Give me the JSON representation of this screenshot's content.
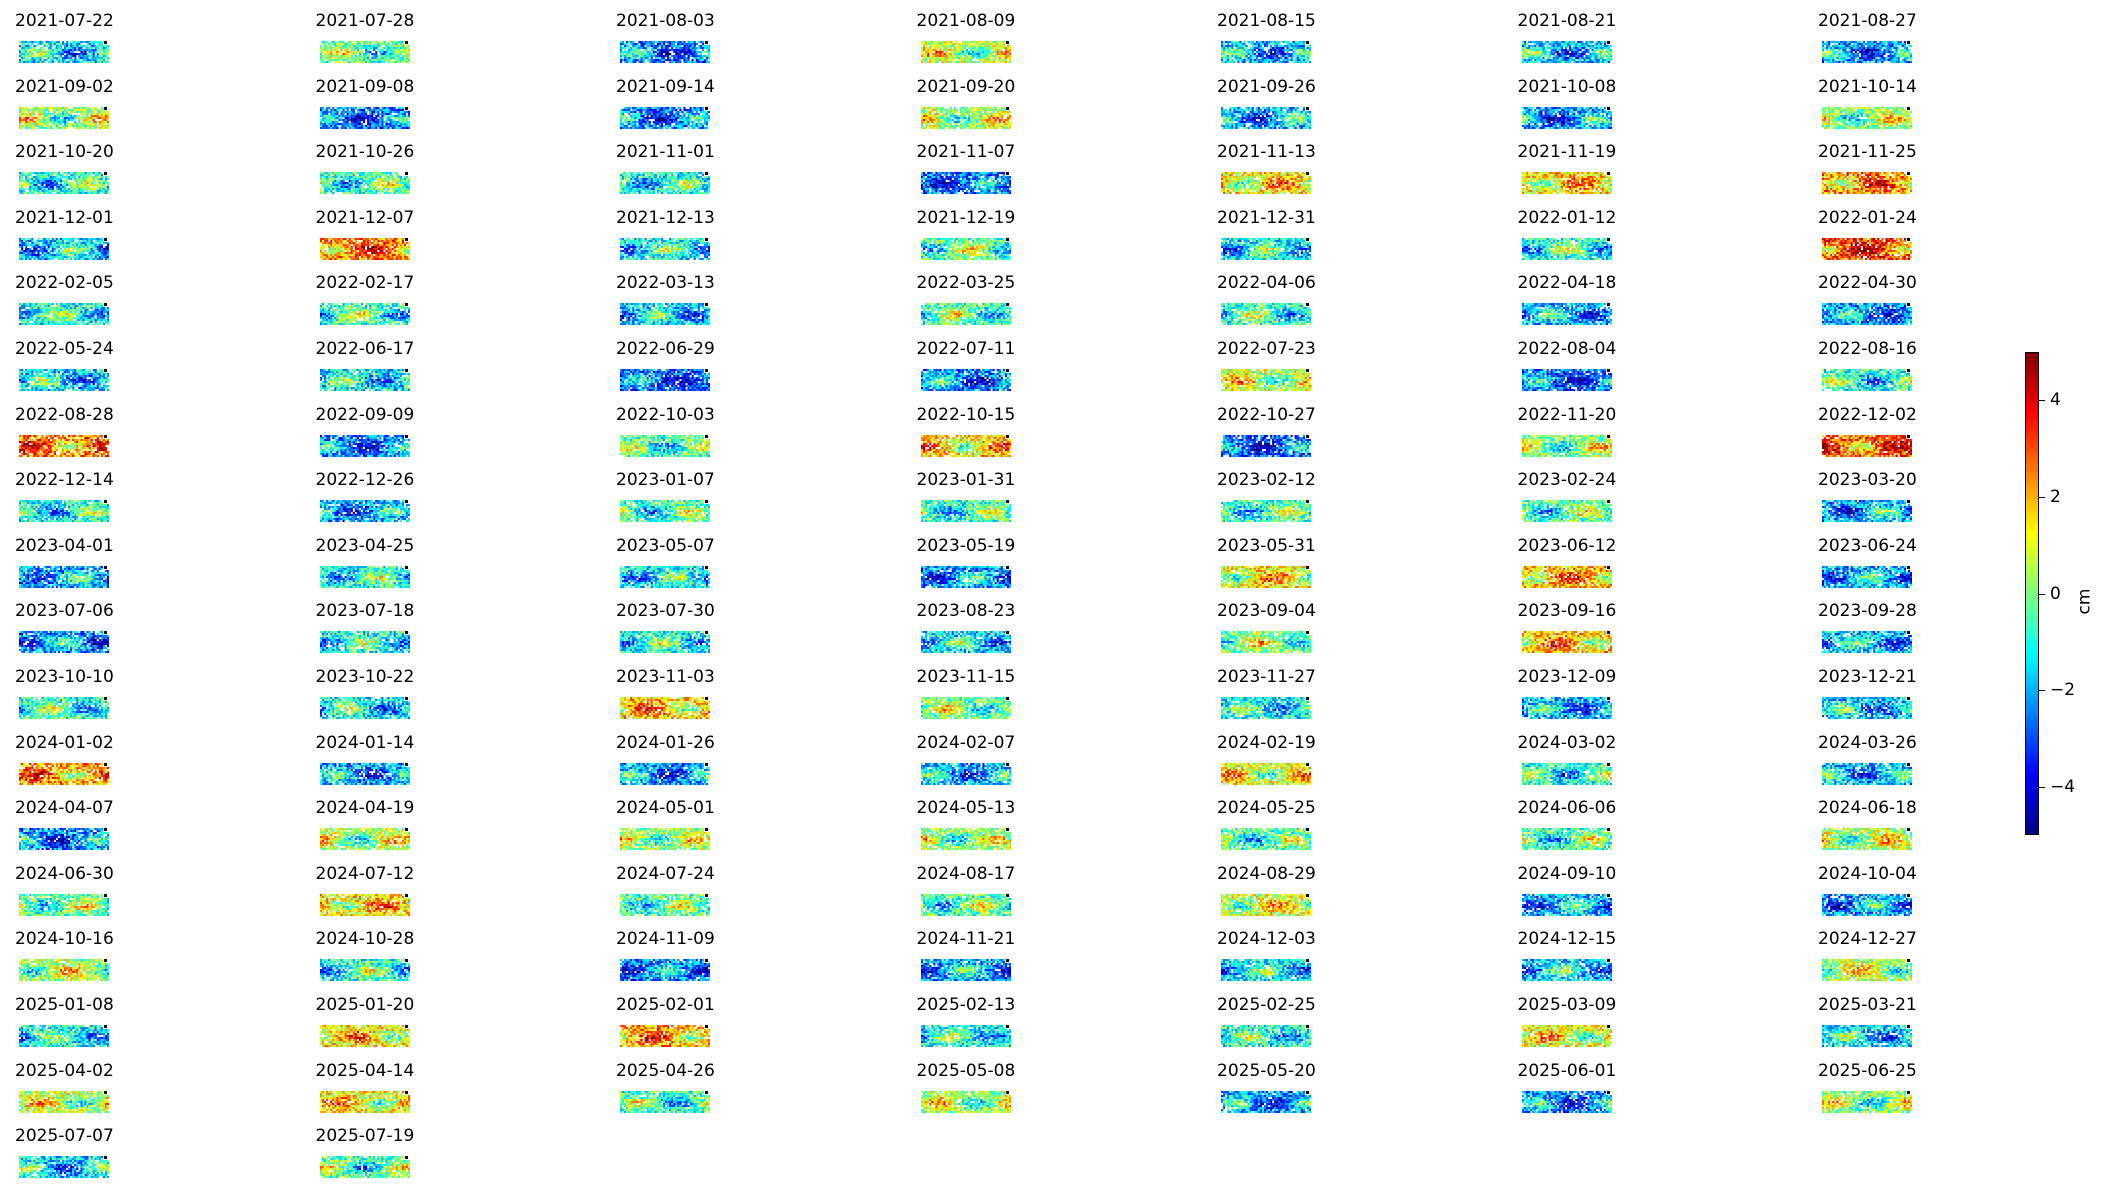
{
  "chart_data": {
    "type": "heatmap",
    "grid": "off",
    "colormap": "jet",
    "panels": [
      {
        "date": "2021-07-22",
        "mean": -1.5
      },
      {
        "date": "2021-07-28",
        "mean": -0.3
      },
      {
        "date": "2021-08-03",
        "mean": -2.5
      },
      {
        "date": "2021-08-09",
        "mean": 0.6
      },
      {
        "date": "2021-08-15",
        "mean": -2.0
      },
      {
        "date": "2021-08-21",
        "mean": -1.8
      },
      {
        "date": "2021-08-27",
        "mean": -2.3
      },
      {
        "date": "2021-09-02",
        "mean": 0.3
      },
      {
        "date": "2021-09-08",
        "mean": -2.6
      },
      {
        "date": "2021-09-14",
        "mean": -2.4
      },
      {
        "date": "2021-09-20",
        "mean": 0.5
      },
      {
        "date": "2021-09-26",
        "mean": -1.9
      },
      {
        "date": "2021-10-08",
        "mean": -2.2
      },
      {
        "date": "2021-10-14",
        "mean": 0.2
      },
      {
        "date": "2021-10-20",
        "mean": -1.0
      },
      {
        "date": "2021-10-26",
        "mean": -0.6
      },
      {
        "date": "2021-11-01",
        "mean": -1.1
      },
      {
        "date": "2021-11-07",
        "mean": -2.6
      },
      {
        "date": "2021-11-13",
        "mean": 1.4
      },
      {
        "date": "2021-11-19",
        "mean": 1.6
      },
      {
        "date": "2021-11-25",
        "mean": 2.4
      },
      {
        "date": "2021-12-01",
        "mean": -1.6
      },
      {
        "date": "2021-12-07",
        "mean": 2.5
      },
      {
        "date": "2021-12-13",
        "mean": -1.2
      },
      {
        "date": "2021-12-19",
        "mean": -0.4
      },
      {
        "date": "2021-12-31",
        "mean": -1.3
      },
      {
        "date": "2022-01-12",
        "mean": -0.9
      },
      {
        "date": "2022-01-24",
        "mean": 3.2
      },
      {
        "date": "2022-02-05",
        "mean": -1.0
      },
      {
        "date": "2022-02-17",
        "mean": -0.8
      },
      {
        "date": "2022-03-13",
        "mean": -1.7
      },
      {
        "date": "2022-03-25",
        "mean": -0.5
      },
      {
        "date": "2022-04-06",
        "mean": -0.7
      },
      {
        "date": "2022-04-18",
        "mean": -2.0
      },
      {
        "date": "2022-04-30",
        "mean": -2.3
      },
      {
        "date": "2022-05-24",
        "mean": -1.6
      },
      {
        "date": "2022-06-17",
        "mean": -1.4
      },
      {
        "date": "2022-06-29",
        "mean": -2.8
      },
      {
        "date": "2022-07-11",
        "mean": -2.4
      },
      {
        "date": "2022-07-23",
        "mean": 0.8
      },
      {
        "date": "2022-08-04",
        "mean": -2.7
      },
      {
        "date": "2022-08-16",
        "mean": -0.9
      },
      {
        "date": "2022-08-28",
        "mean": 2.6
      },
      {
        "date": "2022-09-09",
        "mean": -2.5
      },
      {
        "date": "2022-10-03",
        "mean": -0.5
      },
      {
        "date": "2022-10-15",
        "mean": 1.5
      },
      {
        "date": "2022-10-27",
        "mean": -2.9
      },
      {
        "date": "2022-11-20",
        "mean": 0.1
      },
      {
        "date": "2022-12-02",
        "mean": 2.9
      },
      {
        "date": "2022-12-14",
        "mean": -1.1
      },
      {
        "date": "2022-12-26",
        "mean": -2.2
      },
      {
        "date": "2023-01-07",
        "mean": -0.6
      },
      {
        "date": "2023-01-31",
        "mean": -0.7
      },
      {
        "date": "2023-02-12",
        "mean": -0.8
      },
      {
        "date": "2023-02-24",
        "mean": -0.4
      },
      {
        "date": "2023-03-20",
        "mean": -2.0
      },
      {
        "date": "2023-04-01",
        "mean": -2.1
      },
      {
        "date": "2023-04-25",
        "mean": -1.0
      },
      {
        "date": "2023-05-07",
        "mean": -1.4
      },
      {
        "date": "2023-05-19",
        "mean": -2.2
      },
      {
        "date": "2023-05-31",
        "mean": 1.2
      },
      {
        "date": "2023-06-12",
        "mean": 2.0
      },
      {
        "date": "2023-06-24",
        "mean": -2.0
      },
      {
        "date": "2023-07-06",
        "mean": -2.3
      },
      {
        "date": "2023-07-18",
        "mean": -1.2
      },
      {
        "date": "2023-07-30",
        "mean": -1.0
      },
      {
        "date": "2023-08-23",
        "mean": -1.6
      },
      {
        "date": "2023-09-04",
        "mean": 0.0
      },
      {
        "date": "2023-09-16",
        "mean": 1.8
      },
      {
        "date": "2023-09-28",
        "mean": -1.9
      },
      {
        "date": "2023-10-10",
        "mean": -0.8
      },
      {
        "date": "2023-10-22",
        "mean": -1.3
      },
      {
        "date": "2023-11-03",
        "mean": 1.7
      },
      {
        "date": "2023-11-15",
        "mean": -0.1
      },
      {
        "date": "2023-11-27",
        "mean": -1.2
      },
      {
        "date": "2023-12-09",
        "mean": -2.0
      },
      {
        "date": "2023-12-21",
        "mean": -1.8
      },
      {
        "date": "2024-01-02",
        "mean": 2.2
      },
      {
        "date": "2024-01-14",
        "mean": -2.1
      },
      {
        "date": "2024-01-26",
        "mean": -2.2
      },
      {
        "date": "2024-02-07",
        "mean": -1.9
      },
      {
        "date": "2024-02-19",
        "mean": 1.0
      },
      {
        "date": "2024-03-02",
        "mean": -0.9
      },
      {
        "date": "2024-03-26",
        "mean": -1.8
      },
      {
        "date": "2024-04-07",
        "mean": -2.4
      },
      {
        "date": "2024-04-19",
        "mean": 0.4
      },
      {
        "date": "2024-05-01",
        "mean": 0.3
      },
      {
        "date": "2024-05-13",
        "mean": 0.2
      },
      {
        "date": "2024-05-25",
        "mean": -0.5
      },
      {
        "date": "2024-06-06",
        "mean": -0.6
      },
      {
        "date": "2024-06-18",
        "mean": 0.6
      },
      {
        "date": "2024-06-30",
        "mean": -0.3
      },
      {
        "date": "2024-07-12",
        "mean": 1.6
      },
      {
        "date": "2024-07-24",
        "mean": -0.4
      },
      {
        "date": "2024-08-17",
        "mean": -0.5
      },
      {
        "date": "2024-08-29",
        "mean": 0.9
      },
      {
        "date": "2024-09-10",
        "mean": -2.0
      },
      {
        "date": "2024-10-04",
        "mean": -2.2
      },
      {
        "date": "2024-10-16",
        "mean": 0.4
      },
      {
        "date": "2024-10-28",
        "mean": -0.9
      },
      {
        "date": "2024-11-09",
        "mean": -2.4
      },
      {
        "date": "2024-11-21",
        "mean": -2.0
      },
      {
        "date": "2024-12-03",
        "mean": -1.3
      },
      {
        "date": "2024-12-15",
        "mean": -1.7
      },
      {
        "date": "2024-12-27",
        "mean": 0.5
      },
      {
        "date": "2025-01-08",
        "mean": -1.2
      },
      {
        "date": "2025-01-20",
        "mean": 1.4
      },
      {
        "date": "2025-02-01",
        "mean": 2.0
      },
      {
        "date": "2025-02-13",
        "mean": -1.1
      },
      {
        "date": "2025-02-25",
        "mean": -1.0
      },
      {
        "date": "2025-03-09",
        "mean": 1.1
      },
      {
        "date": "2025-03-21",
        "mean": -1.6
      },
      {
        "date": "2025-04-02",
        "mean": 0.6
      },
      {
        "date": "2025-04-14",
        "mean": 1.3
      },
      {
        "date": "2025-04-26",
        "mean": -0.7
      },
      {
        "date": "2025-05-08",
        "mean": 0.4
      },
      {
        "date": "2025-05-20",
        "mean": -2.1
      },
      {
        "date": "2025-06-01",
        "mean": -2.3
      },
      {
        "date": "2025-06-25",
        "mean": 0.1
      },
      {
        "date": "2025-07-07",
        "mean": -1.5
      },
      {
        "date": "2025-07-19",
        "mean": -0.4
      }
    ],
    "colorbar": {
      "label": "cm",
      "range": [
        -5,
        5
      ],
      "ticks": [
        4,
        2,
        0,
        -2,
        -4
      ],
      "tick_labels": [
        "4",
        "2",
        "0",
        "−2",
        "−4"
      ],
      "colors": [
        "#00007f",
        "#0000ff",
        "#007fff",
        "#00ffff",
        "#7fff7f",
        "#ffff00",
        "#ff7f00",
        "#ff0000",
        "#7f0000"
      ]
    }
  }
}
